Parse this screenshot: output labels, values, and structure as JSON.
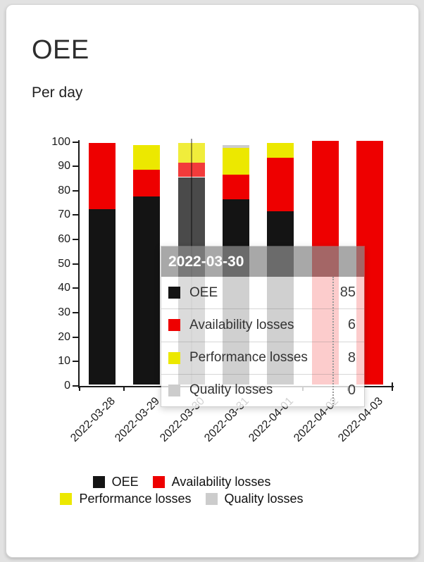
{
  "chart_data": {
    "type": "bar",
    "stacked": true,
    "title": "OEE",
    "subtitle": "Per day",
    "categories": [
      "2022-03-28",
      "2022-03-29",
      "2022-03-30",
      "2022-03-31",
      "2022-04-01",
      "2022-04-02",
      "2022-04-03"
    ],
    "series": [
      {
        "name": "OEE",
        "color": "#141414",
        "values": [
          72,
          77,
          85,
          76,
          71,
          0,
          0
        ]
      },
      {
        "name": "Availability losses",
        "color": "#ee0000",
        "values": [
          27,
          11,
          6,
          10,
          22,
          100,
          100
        ]
      },
      {
        "name": "Performance losses",
        "color": "#ece800",
        "values": [
          0,
          10,
          8,
          11,
          6,
          0,
          0
        ]
      },
      {
        "name": "Quality losses",
        "color": "#cccccc",
        "values": [
          0,
          0,
          0,
          1,
          0,
          0,
          0
        ]
      }
    ],
    "ylim": [
      0,
      100
    ],
    "ytick_step": 10,
    "grid": false,
    "legend_position": "bottom",
    "hovered_category_index": 2
  },
  "tooltip": {
    "title": "2022-03-30",
    "rows": [
      {
        "label": "OEE",
        "value": "85",
        "color": "#141414"
      },
      {
        "label": "Availability losses",
        "value": "6",
        "color": "#ee0000"
      },
      {
        "label": "Performance losses",
        "value": "8",
        "color": "#ece800"
      },
      {
        "label": "Quality losses",
        "value": "0",
        "color": "#cccccc"
      }
    ]
  }
}
